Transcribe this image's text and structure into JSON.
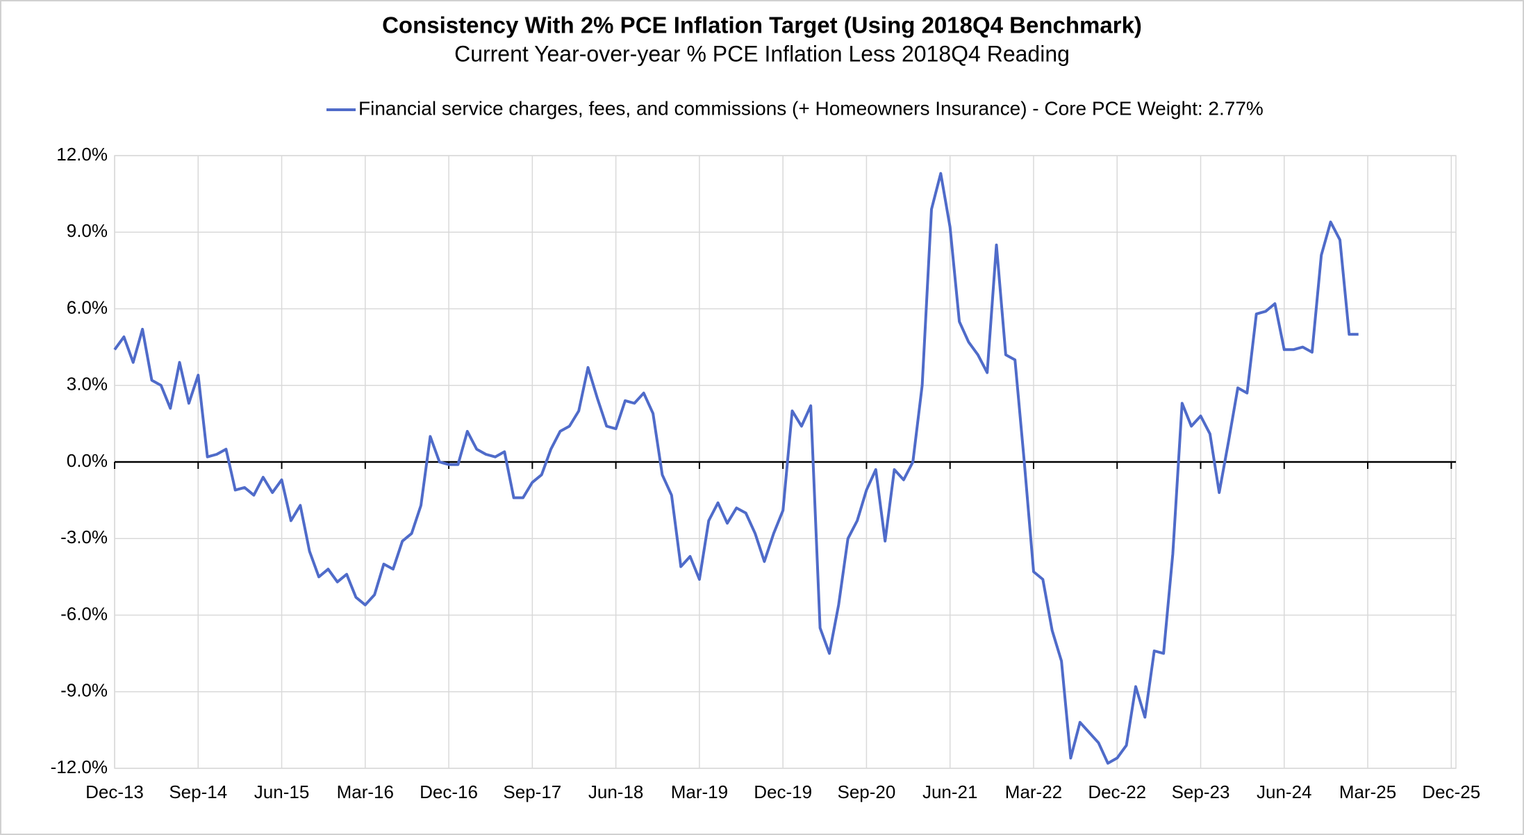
{
  "chart_data": {
    "type": "line",
    "title": "Consistency With 2% PCE Inflation Target (Using 2018Q4 Benchmark)",
    "subtitle": "Current Year-over-year % PCE Inflation Less 2018Q4 Reading",
    "categories": [
      "Dec-13",
      null,
      null,
      null,
      null,
      null,
      null,
      null,
      null,
      "Sep-14",
      null,
      null,
      null,
      null,
      null,
      null,
      null,
      null,
      "Jun-15",
      null,
      null,
      null,
      null,
      null,
      null,
      null,
      null,
      "Mar-16",
      null,
      null,
      null,
      null,
      null,
      null,
      null,
      null,
      "Dec-16",
      null,
      null,
      null,
      null,
      null,
      null,
      null,
      null,
      "Sep-17",
      null,
      null,
      null,
      null,
      null,
      null,
      null,
      null,
      "Jun-18",
      null,
      null,
      null,
      null,
      null,
      null,
      null,
      null,
      "Mar-19",
      null,
      null,
      null,
      null,
      null,
      null,
      null,
      null,
      "Dec-19",
      null,
      null,
      null,
      null,
      null,
      null,
      null,
      null,
      "Sep-20",
      null,
      null,
      null,
      null,
      null,
      null,
      null,
      null,
      "Jun-21",
      null,
      null,
      null,
      null,
      null,
      null,
      null,
      null,
      "Mar-22",
      null,
      null,
      null,
      null,
      null,
      null,
      null,
      null,
      "Dec-22",
      null,
      null,
      null,
      null,
      null,
      null,
      null,
      null,
      "Sep-23",
      null,
      null,
      null,
      null,
      null,
      null,
      null,
      null,
      "Jun-24",
      null,
      null,
      null,
      null,
      null,
      null,
      null,
      null,
      "Mar-25",
      null,
      null,
      null,
      null,
      null,
      null,
      null,
      null,
      "Dec-25"
    ],
    "series": [
      {
        "name": "Financial service charges, fees, and commissions (+ Homeowners Insurance) - Core PCE Weight: 2.77%",
        "color": "#4f6bc9",
        "values": [
          4.4,
          4.9,
          3.9,
          5.2,
          3.2,
          3.0,
          2.1,
          3.9,
          2.3,
          3.4,
          0.2,
          0.3,
          0.5,
          -1.1,
          -1.0,
          -1.3,
          -0.6,
          -1.2,
          -0.7,
          -2.3,
          -1.7,
          -3.5,
          -4.5,
          -4.2,
          -4.7,
          -4.4,
          -5.3,
          -5.6,
          -5.2,
          -4.0,
          -4.2,
          -3.1,
          -2.8,
          -1.7,
          1.0,
          0.0,
          -0.1,
          -0.1,
          1.2,
          0.5,
          0.3,
          0.2,
          0.4,
          -1.4,
          -1.4,
          -0.8,
          -0.5,
          0.5,
          1.2,
          1.4,
          2.0,
          3.7,
          2.5,
          1.4,
          1.3,
          2.4,
          2.3,
          2.7,
          1.9,
          -0.5,
          -1.3,
          -4.1,
          -3.7,
          -4.6,
          -2.3,
          -1.6,
          -2.4,
          -1.8,
          -2.0,
          -2.8,
          -3.9,
          -2.8,
          -1.9,
          2.0,
          1.4,
          2.2,
          -6.5,
          -7.5,
          -5.6,
          -3.0,
          -2.3,
          -1.1,
          -0.3,
          -3.1,
          -0.3,
          -0.7,
          0.0,
          3.0,
          9.9,
          11.3,
          9.2,
          5.5,
          4.7,
          4.2,
          3.5,
          8.5,
          4.2,
          4.0,
          0.0,
          -4.3,
          -4.6,
          -6.6,
          -7.8,
          -11.6,
          -10.2,
          -10.6,
          -11.0,
          -11.8,
          -11.6,
          -11.1,
          -8.8,
          -10.0,
          -7.4,
          -7.5,
          -3.6,
          2.3,
          1.4,
          1.8,
          1.1,
          -1.2,
          0.8,
          2.9,
          2.7,
          5.8,
          5.9,
          6.2,
          4.4,
          4.4,
          4.5,
          4.3,
          8.1,
          9.4,
          8.7,
          5.0,
          5.0,
          null,
          null,
          null,
          null,
          null,
          null,
          null,
          null,
          null,
          null
        ]
      }
    ],
    "ylim": [
      -12,
      12
    ],
    "yticks": [
      {
        "value": -12,
        "label": "-12.0%"
      },
      {
        "value": -9,
        "label": "-9.0%"
      },
      {
        "value": -6,
        "label": "-6.0%"
      },
      {
        "value": -3,
        "label": "-3.0%"
      },
      {
        "value": 0,
        "label": "0.0%"
      },
      {
        "value": 3,
        "label": "3.0%"
      },
      {
        "value": 6,
        "label": "6.0%"
      },
      {
        "value": 9,
        "label": "9.0%"
      },
      {
        "value": 12,
        "label": "12.0%"
      }
    ],
    "grid": true,
    "legend": "top"
  }
}
